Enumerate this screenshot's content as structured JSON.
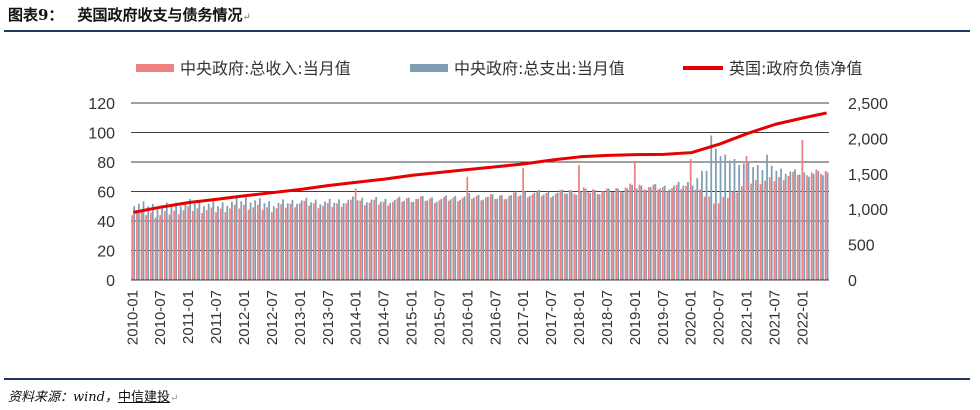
{
  "header": {
    "figure_no": "图表9：",
    "title": "英国政府收支与债务情况"
  },
  "footer": {
    "source_prefix": "资料来源：wind，",
    "source_org": "中信建投"
  },
  "colors": {
    "revenue": "#f08080",
    "expenditure": "#7f9fb4",
    "debt": "#e60000",
    "rule": "#1f3864"
  },
  "chart_data": {
    "type": "bar+line",
    "legend": [
      "中央政府:总收入:当月值",
      "中央政府:总支出:当月值",
      "英国:政府负债净值"
    ],
    "legend_position": "top",
    "grid": true,
    "left_axis": {
      "min": 0,
      "max": 120,
      "ticks": [
        0,
        20,
        40,
        60,
        80,
        100,
        120
      ]
    },
    "right_axis": {
      "min": 0,
      "max": 2500,
      "ticks": [
        "0",
        "500",
        "1,000",
        "1,500",
        "2,000",
        "2,500"
      ]
    },
    "x_tick_labels": [
      "2010-01",
      "2010-07",
      "2011-01",
      "2011-07",
      "2012-01",
      "2012-07",
      "2013-01",
      "2013-07",
      "2014-01",
      "2014-07",
      "2015-01",
      "2015-07",
      "2016-01",
      "2016-07",
      "2017-01",
      "2017-07",
      "2018-01",
      "2018-07",
      "2019-01",
      "2019-07",
      "2020-01",
      "2020-07",
      "2021-01",
      "2021-07",
      "2022-01"
    ],
    "revenue_semiannual": [
      46,
      44,
      48,
      47,
      50,
      48,
      52,
      50,
      53,
      52,
      55,
      54,
      56,
      56,
      58,
      58,
      61,
      60,
      64,
      62,
      63,
      52,
      66,
      68,
      73
    ],
    "expenditure_semiannual": [
      52,
      50,
      53,
      51,
      55,
      52,
      54,
      53,
      55,
      54,
      55,
      55,
      57,
      56,
      59,
      59,
      60,
      60,
      63,
      63,
      66,
      84,
      78,
      75,
      72
    ],
    "revenue_spikes": [
      {
        "month": "2014-01",
        "value": 62
      },
      {
        "month": "2016-01",
        "value": 70
      },
      {
        "month": "2017-01",
        "value": 76
      },
      {
        "month": "2018-01",
        "value": 78
      },
      {
        "month": "2019-01",
        "value": 80
      },
      {
        "month": "2020-01",
        "value": 82
      },
      {
        "month": "2021-01",
        "value": 84
      },
      {
        "month": "2022-01",
        "value": 95
      }
    ],
    "expenditure_spikes": [
      {
        "month": "2020-05",
        "value": 98
      },
      {
        "month": "2020-06",
        "value": 89
      },
      {
        "month": "2021-05",
        "value": 85
      }
    ],
    "debt_semiannual": [
      955,
      1030,
      1095,
      1140,
      1190,
      1235,
      1280,
      1335,
      1380,
      1425,
      1480,
      1520,
      1560,
      1600,
      1640,
      1695,
      1740,
      1760,
      1770,
      1775,
      1800,
      1920,
      2070,
      2200,
      2290
    ],
    "debt_last": {
      "month": "2022-06",
      "value": 2360
    }
  }
}
